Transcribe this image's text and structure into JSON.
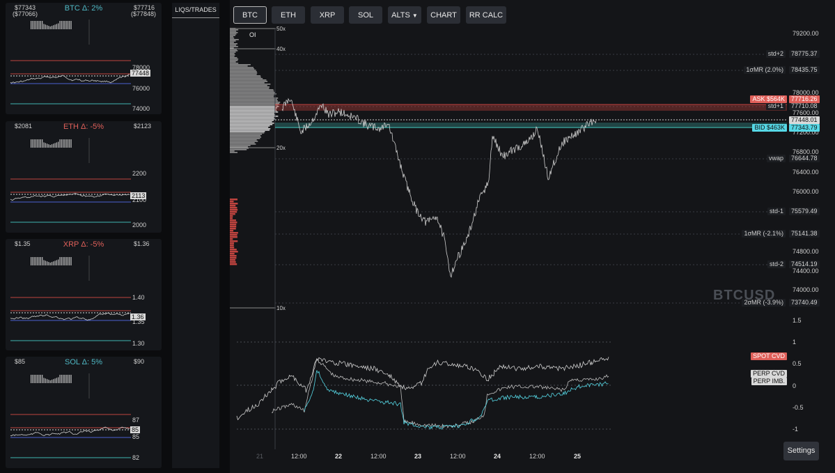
{
  "cards": [
    {
      "low": "$77343",
      "low_sub": "($77066)",
      "delta": "BTC Δ: 2%",
      "delta_color": "#4fb8c4",
      "high": "$77716",
      "high_sub": "($77848)",
      "ticks": [
        "78000",
        "76000",
        "74000"
      ],
      "price": "77448"
    },
    {
      "low": "$2081",
      "low_sub": "",
      "delta": "ETH Δ: -5%",
      "delta_color": "#e0605a",
      "high": "$2123",
      "high_sub": "",
      "ticks": [
        "2200",
        "2100",
        "2000"
      ],
      "price": "2113"
    },
    {
      "low": "$1.35",
      "low_sub": "",
      "delta": "XRP Δ: -5%",
      "delta_color": "#e0605a",
      "high": "$1.36",
      "high_sub": "",
      "ticks": [
        "1.40",
        "1.35",
        "1.30"
      ],
      "price": "1.36"
    },
    {
      "low": "$85",
      "low_sub": "",
      "delta": "SOL Δ: 5%",
      "delta_color": "#4fb8c4",
      "high": "$90",
      "high_sub": "",
      "ticks": [
        "87",
        "85",
        "82"
      ],
      "price": "85"
    }
  ],
  "sidebar": {
    "tab_label": "LIQS/TRADES"
  },
  "toolbar": {
    "btc": "BTC",
    "eth": "ETH",
    "xrp": "XRP",
    "sol": "SOL",
    "alts": "ALTS",
    "chart": "CHART",
    "rrcalc": "RR CALC"
  },
  "chart": {
    "symbol": "BTCUSD",
    "oi_label": "OI",
    "leverage": [
      "50x",
      "40x",
      "20x",
      "10x"
    ],
    "price_ticks": [
      "79200.00",
      "78000.00",
      "77600.00",
      "77200.00",
      "76800.00",
      "76400.00",
      "76000.00",
      "74800.00",
      "74400.00",
      "74000.00"
    ],
    "levels": [
      {
        "name": "std+2",
        "value": "78775.37"
      },
      {
        "name": "1σMR (2.0%)",
        "value": "78435.75"
      },
      {
        "name": "std+1",
        "value": "77710.08"
      },
      {
        "name": "vwap",
        "value": "76644.78"
      },
      {
        "name": "std-1",
        "value": "75579.49"
      },
      {
        "name": "1σMR (-2.1%)",
        "value": "75141.38"
      },
      {
        "name": "std-2",
        "value": "74514.19"
      },
      {
        "name": "2σMR (-3.9%)",
        "value": "73740.49"
      }
    ],
    "ask": {
      "label": "ASK $564K",
      "value": "77716.26"
    },
    "bid": {
      "label": "BID $463K",
      "value": "77343.79"
    },
    "current": "77448.01",
    "cvd_ticks": [
      "1.5",
      "1",
      "0.5",
      "0",
      "-0.5",
      "-1"
    ],
    "cvd_labels": {
      "spot": "SPOT CVD",
      "perp": "PERP CVD",
      "imb": "PERP IMB."
    },
    "x_labels": [
      "21",
      "12:00",
      "22",
      "12:00",
      "23",
      "12:00",
      "24",
      "12:00",
      "25"
    ],
    "colors": {
      "ask": "#e0605a",
      "bid": "#56d8e6",
      "price_line": "#cfcfcf"
    }
  },
  "settings_label": "Settings"
}
